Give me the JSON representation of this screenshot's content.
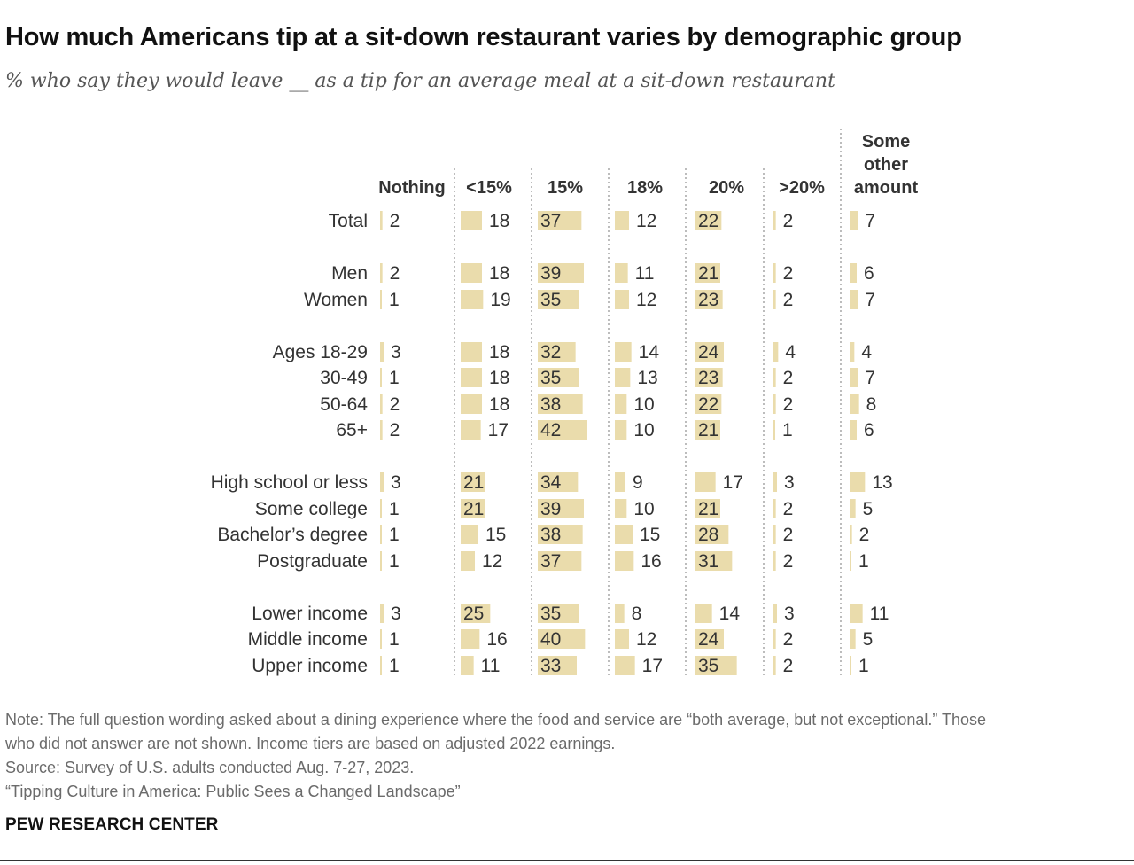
{
  "title": "How much Americans tip at a sit-down restaurant varies by demographic group",
  "subtitle": "% who say they would leave __ as a tip for an average meal at a sit-down restaurant",
  "notes": [
    "Note: The full question wording asked about a dining experience where the food and service are “both average, but not exceptional.” Those",
    "who did not answer are not shown. Income tiers are based on adjusted 2022 earnings.",
    "Source: Survey of U.S. adults conducted Aug. 7-27, 2023.",
    "“Tipping Culture in America: Public Sees a Changed Landscape”"
  ],
  "brand": "PEW RESEARCH CENTER",
  "colors": {
    "bar": "#eadcac",
    "text": "#333333",
    "divider": "#999999"
  },
  "chart_data": {
    "type": "table",
    "bar_scale_max": 42,
    "columns": [
      {
        "key": "nothing",
        "label": [
          "Nothing"
        ]
      },
      {
        "key": "lt15",
        "label": [
          "<15%"
        ]
      },
      {
        "key": "p15",
        "label": [
          "15%"
        ]
      },
      {
        "key": "p18",
        "label": [
          "18%"
        ]
      },
      {
        "key": "p20",
        "label": [
          "20%"
        ]
      },
      {
        "key": "gt20",
        "label": [
          ">20%"
        ]
      },
      {
        "key": "other",
        "label": [
          "Some",
          "other",
          "amount"
        ]
      }
    ],
    "rows": [
      {
        "label": "Total",
        "values": [
          2,
          18,
          37,
          12,
          22,
          2,
          7
        ]
      },
      {
        "label": "Men",
        "values": [
          2,
          18,
          39,
          11,
          21,
          2,
          6
        ]
      },
      {
        "label": "Women",
        "values": [
          1,
          19,
          35,
          12,
          23,
          2,
          7
        ]
      },
      {
        "label": "Ages 18-29",
        "values": [
          3,
          18,
          32,
          14,
          24,
          4,
          4
        ]
      },
      {
        "label": "30-49",
        "values": [
          1,
          18,
          35,
          13,
          23,
          2,
          7
        ]
      },
      {
        "label": "50-64",
        "values": [
          2,
          18,
          38,
          10,
          22,
          2,
          8
        ]
      },
      {
        "label": "65+",
        "values": [
          2,
          17,
          42,
          10,
          21,
          1,
          6
        ]
      },
      {
        "label": "High school or less",
        "values": [
          3,
          21,
          34,
          9,
          17,
          3,
          13
        ]
      },
      {
        "label": "Some college",
        "values": [
          1,
          21,
          39,
          10,
          21,
          2,
          5
        ]
      },
      {
        "label": "Bachelor’s degree",
        "values": [
          1,
          15,
          38,
          15,
          28,
          2,
          2
        ]
      },
      {
        "label": "Postgraduate",
        "values": [
          1,
          12,
          37,
          16,
          31,
          2,
          1
        ]
      },
      {
        "label": "Lower income",
        "values": [
          3,
          25,
          35,
          8,
          14,
          3,
          11
        ]
      },
      {
        "label": "Middle income",
        "values": [
          1,
          16,
          40,
          12,
          24,
          2,
          5
        ]
      },
      {
        "label": "Upper income",
        "values": [
          1,
          11,
          33,
          17,
          35,
          2,
          1
        ]
      }
    ]
  }
}
